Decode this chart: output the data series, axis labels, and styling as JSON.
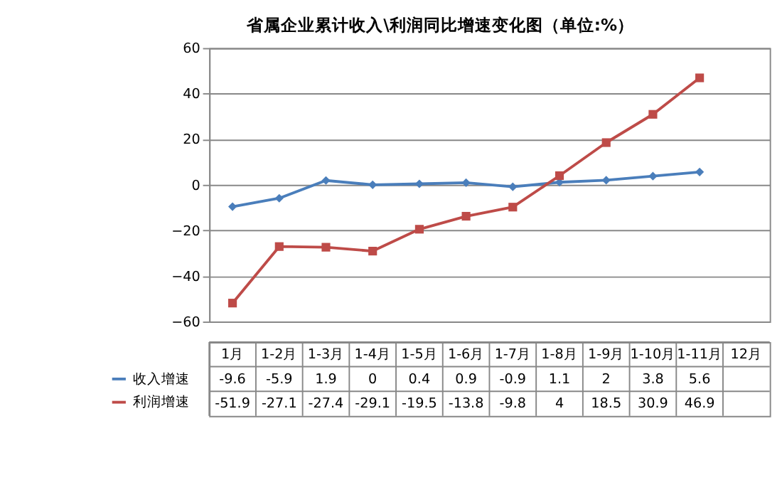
{
  "chart_data": {
    "type": "line",
    "title": "省属企业累计收入\\利润同比增速变化图（单位:%）",
    "categories": [
      "1月",
      "1-2月",
      "1-3月",
      "1-4月",
      "1-5月",
      "1-6月",
      "1-7月",
      "1-8月",
      "1-9月",
      "1-10月",
      "1-11月",
      "12月"
    ],
    "series": [
      {
        "name": "收入增速",
        "color": "#4a7ebb",
        "marker": "diamond",
        "values": [
          -9.6,
          -5.9,
          1.9,
          0,
          0.4,
          0.9,
          -0.9,
          1.1,
          2,
          3.8,
          5.6,
          null
        ]
      },
      {
        "name": "利润增速",
        "color": "#be4b48",
        "marker": "square",
        "values": [
          -51.9,
          -27.1,
          -27.4,
          -29.1,
          -19.5,
          -13.8,
          -9.8,
          4,
          18.5,
          30.9,
          46.9,
          null
        ]
      }
    ],
    "ylim": [
      -60,
      60
    ],
    "yticks": [
      -60,
      -40,
      -20,
      0,
      20,
      40,
      60
    ],
    "grid": "y",
    "legend": "bottom left",
    "data_labels": true
  }
}
